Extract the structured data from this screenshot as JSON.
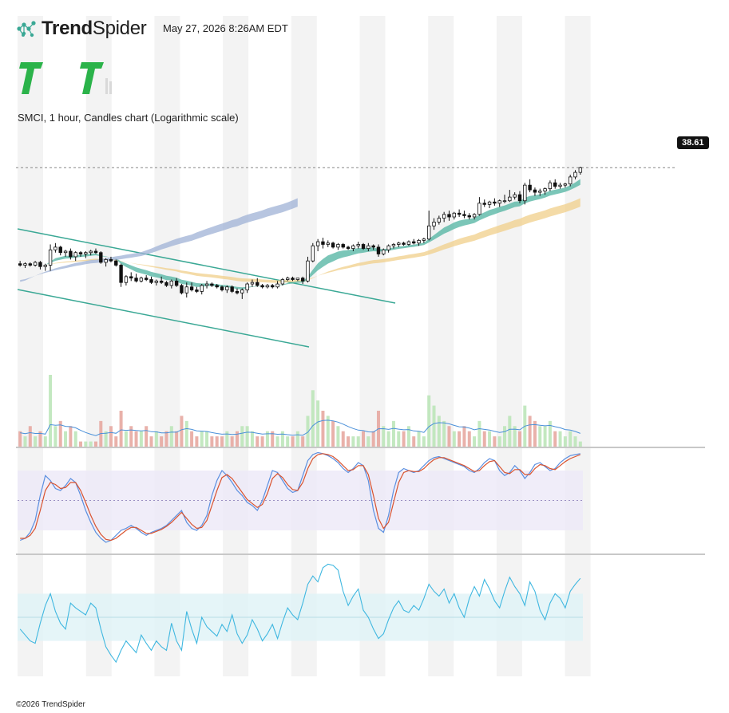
{
  "brand": {
    "name_bold": "Trend",
    "name_regular": "Spider",
    "logo_icon": "constellation-icon"
  },
  "timestamp": "May 27, 2026 8:26AM EDT",
  "watermark_icon": "tt-logo-icon",
  "chart_title": "SMCI, 1 hour, Candles chart (Logarithmic scale)",
  "last_price": "38.61",
  "footer": "©2026 TrendSpider",
  "colors": {
    "bull": "#2e9e6e",
    "bear": "#e06a6a",
    "channel": "#3aa895",
    "ema_fast": "#4fb3a0",
    "ema_slow": "#9fb1d6",
    "stoch_k": "#5b8fe0",
    "stoch_d": "#d9532f",
    "osc": "#3fb7e0"
  },
  "chart_data": [
    {
      "type": "candlestick",
      "title": "SMCI, 1 hour, Candles chart (Logarithmic scale)",
      "scale": "logarithmic",
      "ylim": [
        25.4,
        40.8
      ],
      "grid": "alternating vertical session bands",
      "candles": [
        [
          31.0,
          31.2,
          30.8,
          30.9
        ],
        [
          30.9,
          31.1,
          30.7,
          31.0
        ],
        [
          31.0,
          31.1,
          30.8,
          30.9
        ],
        [
          30.9,
          31.2,
          30.8,
          31.1
        ],
        [
          31.1,
          31.2,
          30.6,
          30.8
        ],
        [
          30.8,
          31.0,
          30.5,
          30.9
        ],
        [
          30.9,
          32.4,
          30.5,
          32.0
        ],
        [
          32.0,
          32.5,
          31.8,
          32.2
        ],
        [
          32.2,
          32.3,
          31.6,
          31.8
        ],
        [
          31.8,
          32.0,
          31.5,
          31.9
        ],
        [
          31.9,
          32.1,
          31.3,
          31.5
        ],
        [
          31.5,
          31.9,
          31.2,
          31.8
        ],
        [
          31.8,
          31.9,
          31.5,
          31.7
        ],
        [
          31.7,
          31.9,
          31.4,
          31.8
        ],
        [
          31.8,
          32.0,
          31.6,
          31.9
        ],
        [
          31.9,
          32.1,
          31.7,
          31.8
        ],
        [
          31.8,
          31.9,
          31.0,
          31.1
        ],
        [
          31.1,
          31.4,
          30.8,
          31.3
        ],
        [
          31.3,
          31.5,
          31.1,
          31.2
        ],
        [
          31.2,
          31.3,
          30.8,
          30.9
        ],
        [
          30.9,
          31.0,
          29.4,
          29.7
        ],
        [
          29.7,
          30.2,
          29.5,
          30.1
        ],
        [
          30.1,
          30.4,
          29.8,
          30.0
        ],
        [
          30.0,
          30.3,
          29.7,
          29.8
        ],
        [
          29.8,
          30.1,
          29.7,
          30.0
        ],
        [
          30.0,
          30.2,
          29.8,
          29.9
        ],
        [
          29.9,
          30.1,
          29.6,
          29.7
        ],
        [
          29.7,
          29.9,
          29.5,
          29.8
        ],
        [
          29.8,
          30.1,
          29.6,
          29.7
        ],
        [
          29.7,
          29.8,
          29.4,
          29.5
        ],
        [
          29.5,
          29.9,
          29.3,
          29.8
        ],
        [
          29.8,
          30.0,
          29.4,
          29.5
        ],
        [
          29.5,
          29.6,
          28.9,
          29.0
        ],
        [
          29.0,
          29.7,
          28.7,
          29.4
        ],
        [
          29.4,
          29.7,
          29.1,
          29.2
        ],
        [
          29.2,
          29.4,
          29.0,
          29.1
        ],
        [
          29.1,
          29.6,
          28.9,
          29.5
        ],
        [
          29.5,
          29.8,
          29.3,
          29.6
        ],
        [
          29.6,
          29.7,
          29.4,
          29.5
        ],
        [
          29.5,
          29.6,
          29.3,
          29.4
        ],
        [
          29.4,
          29.5,
          29.1,
          29.2
        ],
        [
          29.2,
          29.5,
          29.0,
          29.4
        ],
        [
          29.4,
          29.5,
          29.0,
          29.1
        ],
        [
          29.1,
          29.3,
          28.9,
          29.0
        ],
        [
          29.0,
          29.3,
          28.6,
          29.2
        ],
        [
          29.2,
          29.7,
          29.0,
          29.6
        ],
        [
          29.6,
          29.9,
          29.4,
          29.7
        ],
        [
          29.7,
          30.0,
          29.4,
          29.5
        ],
        [
          29.5,
          29.6,
          29.3,
          29.4
        ],
        [
          29.4,
          29.6,
          29.3,
          29.5
        ],
        [
          29.5,
          29.6,
          29.3,
          29.4
        ],
        [
          29.4,
          29.8,
          29.3,
          29.6
        ],
        [
          29.6,
          30.0,
          29.5,
          29.9
        ],
        [
          29.9,
          30.1,
          29.8,
          30.0
        ],
        [
          30.0,
          30.1,
          29.8,
          29.9
        ],
        [
          29.9,
          30.0,
          29.8,
          30.0
        ],
        [
          30.0,
          30.1,
          29.6,
          29.8
        ],
        [
          29.8,
          31.5,
          29.7,
          31.2
        ],
        [
          31.2,
          32.5,
          31.1,
          32.3
        ],
        [
          32.3,
          32.8,
          31.9,
          32.6
        ],
        [
          32.6,
          32.9,
          32.1,
          32.4
        ],
        [
          32.4,
          32.7,
          32.2,
          32.5
        ],
        [
          32.5,
          32.6,
          32.1,
          32.2
        ],
        [
          32.2,
          32.5,
          32.0,
          32.4
        ],
        [
          32.4,
          32.5,
          32.1,
          32.2
        ],
        [
          32.2,
          32.3,
          32.0,
          32.1
        ],
        [
          32.1,
          32.4,
          31.9,
          32.3
        ],
        [
          32.3,
          32.6,
          32.1,
          32.4
        ],
        [
          32.4,
          32.5,
          32.0,
          32.1
        ],
        [
          32.1,
          32.5,
          31.9,
          32.3
        ],
        [
          32.3,
          32.4,
          32.0,
          32.2
        ],
        [
          32.2,
          32.4,
          31.5,
          31.7
        ],
        [
          31.7,
          32.1,
          31.6,
          32.0
        ],
        [
          32.0,
          32.4,
          31.8,
          32.3
        ],
        [
          32.3,
          32.5,
          32.1,
          32.4
        ],
        [
          32.4,
          32.6,
          32.2,
          32.5
        ],
        [
          32.5,
          32.6,
          32.3,
          32.4
        ],
        [
          32.4,
          32.7,
          32.3,
          32.6
        ],
        [
          32.6,
          32.8,
          32.4,
          32.5
        ],
        [
          32.5,
          32.8,
          32.3,
          32.7
        ],
        [
          32.7,
          32.9,
          32.5,
          32.8
        ],
        [
          32.8,
          35.0,
          32.7,
          33.8
        ],
        [
          33.8,
          34.4,
          33.5,
          34.1
        ],
        [
          34.1,
          34.6,
          33.9,
          34.4
        ],
        [
          34.4,
          34.9,
          34.1,
          34.7
        ],
        [
          34.7,
          35.0,
          34.2,
          34.5
        ],
        [
          34.5,
          34.9,
          34.3,
          34.8
        ],
        [
          34.8,
          35.1,
          34.5,
          34.7
        ],
        [
          34.7,
          35.0,
          34.4,
          34.6
        ],
        [
          34.6,
          34.8,
          34.3,
          34.5
        ],
        [
          34.5,
          34.8,
          34.3,
          34.7
        ],
        [
          34.7,
          36.1,
          34.6,
          35.6
        ],
        [
          35.6,
          35.9,
          35.3,
          35.5
        ],
        [
          35.5,
          35.8,
          35.2,
          35.7
        ],
        [
          35.7,
          36.0,
          35.4,
          35.6
        ],
        [
          35.6,
          35.9,
          35.3,
          35.8
        ],
        [
          35.8,
          36.3,
          35.6,
          35.8
        ],
        [
          35.8,
          36.7,
          35.7,
          36.1
        ],
        [
          36.1,
          36.5,
          35.9,
          36.3
        ],
        [
          36.3,
          36.6,
          35.6,
          35.8
        ],
        [
          35.8,
          37.3,
          35.5,
          37.1
        ],
        [
          37.1,
          37.6,
          36.5,
          36.7
        ],
        [
          36.7,
          36.9,
          36.2,
          36.5
        ],
        [
          36.5,
          36.8,
          36.2,
          36.6
        ],
        [
          36.6,
          36.9,
          36.3,
          36.8
        ],
        [
          36.8,
          37.5,
          36.6,
          37.3
        ],
        [
          37.3,
          37.6,
          36.8,
          37.0
        ],
        [
          37.0,
          37.3,
          36.8,
          37.1
        ],
        [
          37.1,
          37.3,
          36.9,
          37.2
        ],
        [
          37.2,
          38.0,
          37.0,
          37.8
        ],
        [
          37.8,
          38.4,
          37.6,
          38.2
        ],
        [
          38.2,
          38.7,
          38.0,
          38.61
        ]
      ]
    },
    {
      "type": "bar",
      "name": "volume",
      "values": [
        3,
        2,
        4,
        2,
        3,
        2,
        14,
        4,
        5,
        3,
        4,
        3,
        1,
        1,
        1,
        1,
        5,
        3,
        4,
        2,
        7,
        3,
        4,
        3,
        3,
        4,
        2,
        3,
        2,
        3,
        4,
        3,
        6,
        5,
        3,
        2,
        3,
        3,
        2,
        2,
        2,
        3,
        2,
        3,
        4,
        4,
        3,
        2,
        2,
        3,
        3,
        2,
        3,
        2,
        2,
        3,
        2,
        6,
        11,
        9,
        7,
        6,
        5,
        4,
        3,
        2,
        2,
        2,
        3,
        2,
        3,
        7,
        4,
        3,
        5,
        3,
        3,
        4,
        2,
        3,
        2,
        10,
        8,
        6,
        5,
        4,
        3,
        3,
        4,
        3,
        2,
        5,
        3,
        3,
        2,
        2,
        4,
        6,
        4,
        3,
        8,
        6,
        5,
        4,
        4,
        5,
        3,
        3,
        2,
        3,
        2,
        1
      ]
    },
    {
      "type": "line",
      "name": "stochastic",
      "ylim": [
        0,
        100
      ],
      "series": [
        {
          "name": "%K",
          "values": [
            10,
            12,
            18,
            30,
            55,
            75,
            70,
            62,
            60,
            65,
            72,
            68,
            55,
            40,
            28,
            18,
            12,
            8,
            10,
            15,
            20,
            22,
            25,
            22,
            18,
            15,
            18,
            20,
            22,
            25,
            30,
            35,
            40,
            28,
            22,
            20,
            25,
            35,
            55,
            70,
            80,
            75,
            68,
            60,
            55,
            48,
            45,
            40,
            50,
            65,
            80,
            78,
            70,
            62,
            58,
            60,
            75,
            90,
            96,
            98,
            97,
            95,
            92,
            88,
            82,
            78,
            82,
            88,
            85,
            70,
            40,
            22,
            18,
            35,
            60,
            78,
            82,
            80,
            78,
            80,
            85,
            90,
            93,
            94,
            92,
            90,
            88,
            86,
            84,
            80,
            78,
            82,
            88,
            92,
            90,
            80,
            75,
            78,
            85,
            80,
            72,
            78,
            86,
            88,
            84,
            80,
            82,
            88,
            92,
            95,
            96,
            97
          ]
        },
        {
          "name": "%D",
          "values": [
            12,
            12,
            15,
            22,
            40,
            60,
            68,
            66,
            62,
            63,
            68,
            68,
            60,
            48,
            35,
            24,
            16,
            11,
            10,
            12,
            16,
            20,
            23,
            23,
            20,
            17,
            17,
            19,
            21,
            24,
            28,
            33,
            38,
            32,
            26,
            22,
            23,
            30,
            45,
            60,
            73,
            76,
            72,
            65,
            58,
            51,
            47,
            43,
            46,
            57,
            72,
            77,
            73,
            66,
            61,
            60,
            68,
            82,
            92,
            96,
            97,
            96,
            94,
            90,
            85,
            80,
            81,
            85,
            85,
            76,
            55,
            32,
            22,
            28,
            48,
            68,
            78,
            80,
            79,
            79,
            82,
            87,
            91,
            93,
            93,
            91,
            89,
            87,
            85,
            82,
            79,
            80,
            85,
            89,
            90,
            84,
            78,
            77,
            81,
            81,
            76,
            76,
            82,
            86,
            85,
            82,
            81,
            85,
            89,
            92,
            94,
            96
          ]
        }
      ]
    },
    {
      "type": "line",
      "name": "oscillator",
      "values": [
        40,
        35,
        30,
        28,
        45,
        60,
        70,
        55,
        45,
        40,
        62,
        58,
        55,
        52,
        62,
        58,
        40,
        25,
        18,
        12,
        22,
        30,
        25,
        20,
        35,
        28,
        22,
        30,
        25,
        22,
        45,
        30,
        22,
        55,
        40,
        28,
        50,
        42,
        38,
        34,
        44,
        38,
        52,
        36,
        28,
        35,
        48,
        40,
        30,
        36,
        44,
        32,
        46,
        58,
        52,
        48,
        62,
        78,
        85,
        80,
        92,
        95,
        94,
        90,
        72,
        60,
        68,
        74,
        56,
        50,
        40,
        32,
        36,
        48,
        58,
        64,
        56,
        54,
        60,
        56,
        66,
        78,
        72,
        68,
        74,
        62,
        70,
        58,
        50,
        66,
        76,
        68,
        82,
        74,
        64,
        58,
        72,
        84,
        76,
        70,
        60,
        80,
        72,
        56,
        48,
        62,
        70,
        66,
        58,
        72,
        78,
        83
      ]
    }
  ]
}
